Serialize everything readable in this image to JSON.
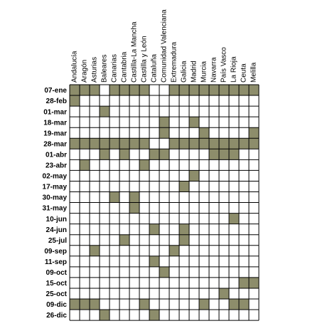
{
  "table": {
    "columns": [
      "Andalucía",
      "Aragón",
      "Asturias",
      "Baleares",
      "Canarias",
      "Cantabria",
      "Castilla-La Mancha",
      "Castilla y León",
      "Cataluña",
      "Comunidad Valenciana",
      "Extremadura",
      "Galicia",
      "Madrid",
      "Murcia",
      "Navarra",
      "País Vasco",
      "La Rioja",
      "Ceuta",
      "Melilla"
    ],
    "fill_color": "#8d8d6b",
    "rows": [
      {
        "date": "07-ene",
        "marked": [
          0,
          1,
          2,
          4,
          5,
          6,
          7,
          10,
          11,
          12,
          13,
          14,
          15,
          16,
          17,
          18
        ]
      },
      {
        "date": "28-feb",
        "marked": [
          0
        ]
      },
      {
        "date": "01-mar",
        "marked": [
          3
        ]
      },
      {
        "date": "18-mar",
        "marked": [
          9,
          12
        ]
      },
      {
        "date": "19-mar",
        "marked": [
          9,
          13,
          18
        ]
      },
      {
        "date": "28-mar",
        "marked": [
          0,
          1,
          2,
          3,
          4,
          5,
          6,
          7,
          10,
          11,
          12,
          13,
          14,
          15,
          16,
          17,
          18
        ]
      },
      {
        "date": "01-abr",
        "marked": [
          3,
          5,
          8,
          9,
          14,
          15,
          16
        ]
      },
      {
        "date": "23-abr",
        "marked": [
          1,
          7
        ]
      },
      {
        "date": "02-may",
        "marked": [
          12
        ]
      },
      {
        "date": "17-may",
        "marked": [
          11
        ]
      },
      {
        "date": "30-may",
        "marked": [
          4,
          6
        ]
      },
      {
        "date": "31-may",
        "marked": [
          6
        ]
      },
      {
        "date": "10-jun",
        "marked": [
          16
        ]
      },
      {
        "date": "24-jun",
        "marked": [
          8,
          11
        ]
      },
      {
        "date": "25-jul",
        "marked": [
          5,
          11
        ]
      },
      {
        "date": "09-sep",
        "marked": [
          2,
          10
        ]
      },
      {
        "date": "11-sep",
        "marked": [
          8
        ]
      },
      {
        "date": "09-oct",
        "marked": [
          9
        ]
      },
      {
        "date": "15-oct",
        "marked": [
          17,
          18
        ]
      },
      {
        "date": "25-oct",
        "marked": [
          15
        ]
      },
      {
        "date": "09-dic",
        "marked": [
          0,
          1,
          2,
          7,
          13,
          16,
          17
        ]
      },
      {
        "date": "26-dic",
        "marked": [
          3,
          8
        ]
      }
    ]
  }
}
